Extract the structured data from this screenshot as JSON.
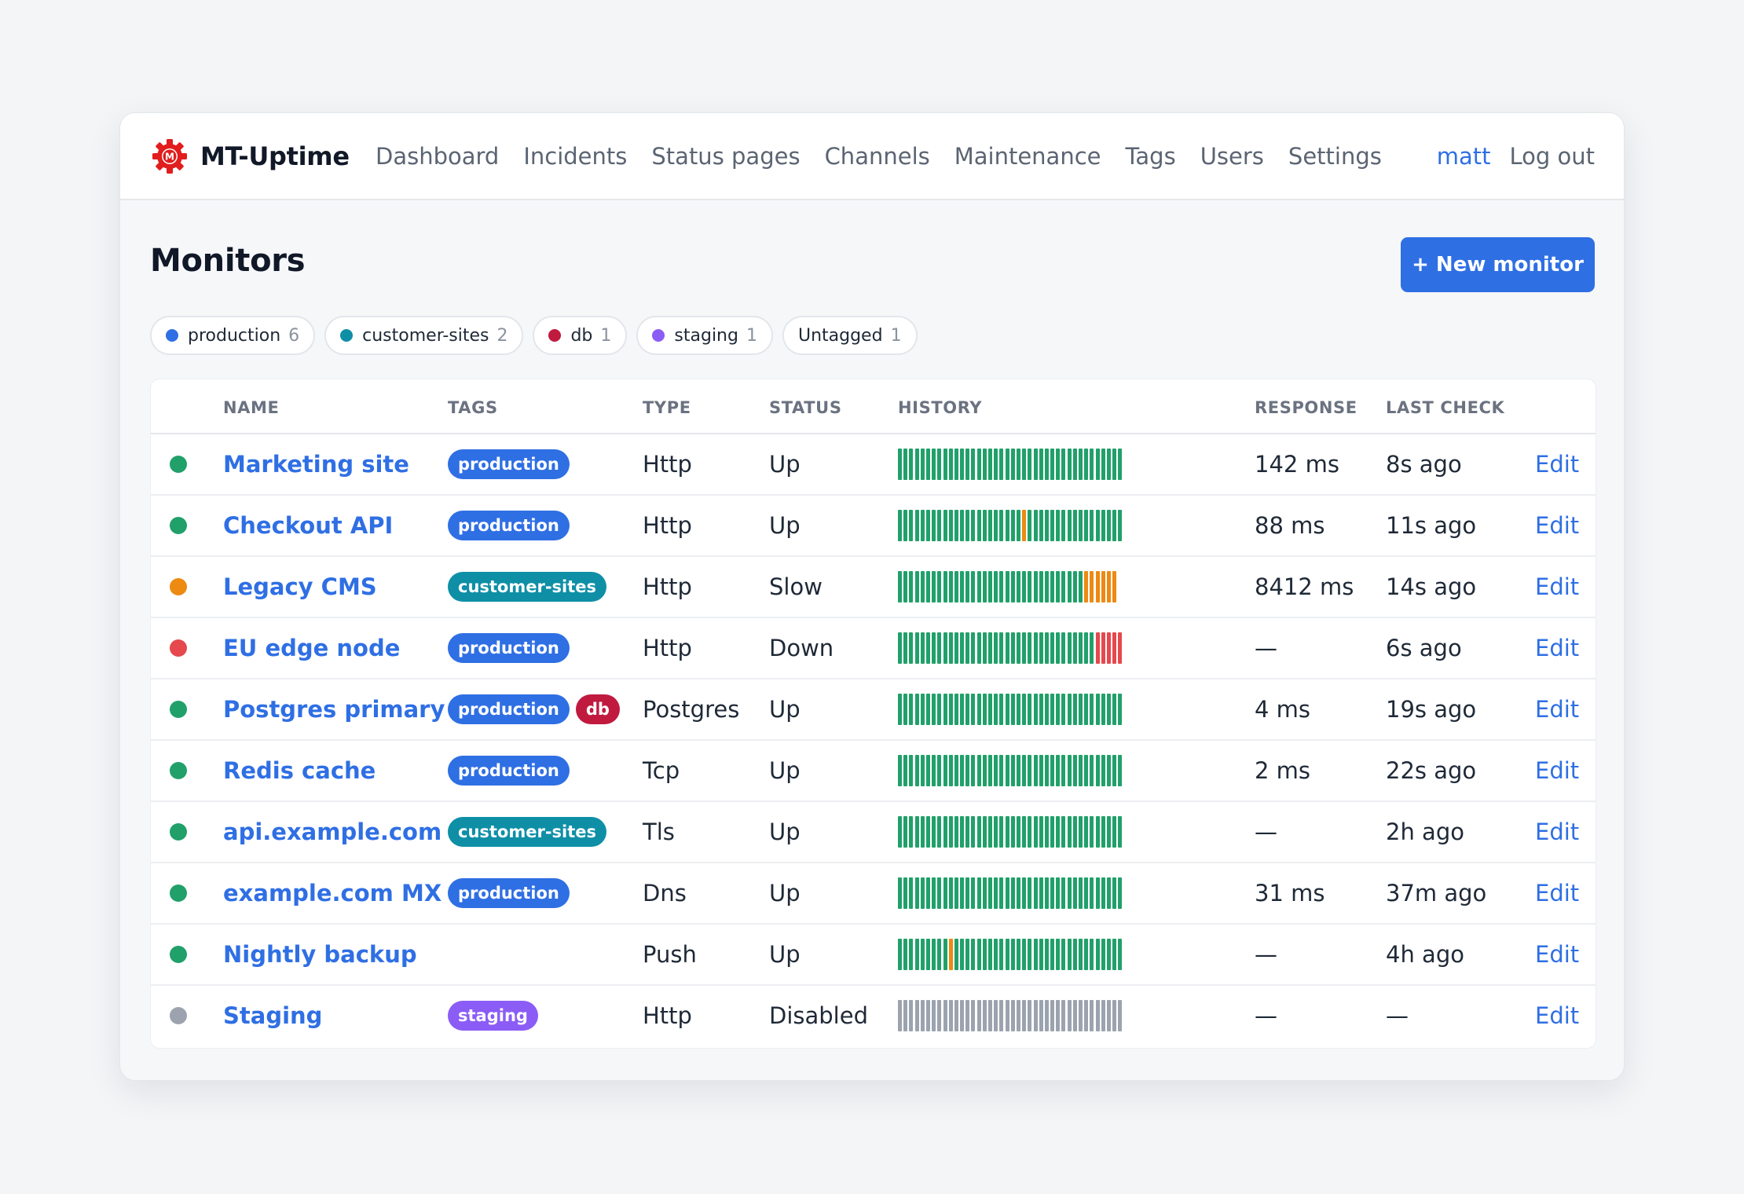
{
  "app": {
    "name": "MT-Uptime",
    "logo_letter": "M",
    "logo_color": "#e11d1d"
  },
  "nav": {
    "links": [
      "Dashboard",
      "Incidents",
      "Status pages",
      "Channels",
      "Maintenance",
      "Tags",
      "Users",
      "Settings"
    ],
    "user": "matt",
    "logout": "Log out"
  },
  "page": {
    "title": "Monitors",
    "new_button": "+ New monitor"
  },
  "colors": {
    "accent": "#2f6fe4",
    "up": "#21a06a",
    "slow": "#ec8a12",
    "down": "#e5484d",
    "disabled": "#9ca3af"
  },
  "filters": [
    {
      "label": "production",
      "count": "6",
      "color": "#2f6fe4"
    },
    {
      "label": "customer-sites",
      "count": "2",
      "color": "#0e8fa6"
    },
    {
      "label": "db",
      "count": "1",
      "color": "#c01a3f"
    },
    {
      "label": "staging",
      "count": "1",
      "color": "#8b5cf6"
    },
    {
      "label": "Untagged",
      "count": "1",
      "color": null
    }
  ],
  "tag_colors": {
    "production": "#2f6fe4",
    "customer-sites": "#0e8fa6",
    "db": "#c01a3f",
    "staging": "#8b5cf6"
  },
  "table": {
    "columns": {
      "name": "NAME",
      "tags": "TAGS",
      "type": "TYPE",
      "status": "STATUS",
      "history": "HISTORY",
      "response": "RESPONSE",
      "last_check": "LAST CHECK"
    },
    "edit_label": "Edit",
    "rows": [
      {
        "state": "up",
        "name": "Marketing site",
        "tags": [
          "production"
        ],
        "type": "Http",
        "status": "Up",
        "response": "142 ms",
        "last_check": "8s ago",
        "history": "uuuuuuuuuuuuuuuuuuuuuuuuuuuuuuuuuuuuuuuu"
      },
      {
        "state": "up",
        "name": "Checkout API",
        "tags": [
          "production"
        ],
        "type": "Http",
        "status": "Up",
        "response": "88 ms",
        "last_check": "11s ago",
        "history": "uuuuuuuuuuuuuuuuuuuuuusuuuuuuuuuuuuuuuuu"
      },
      {
        "state": "slow",
        "name": "Legacy CMS",
        "tags": [
          "customer-sites"
        ],
        "type": "Http",
        "status": "Slow",
        "response": "8412 ms",
        "last_check": "14s ago",
        "history": "uuuuuuuuuuuuuuuuuuuuuuuuuuuuuuuuussssss"
      },
      {
        "state": "down",
        "name": "EU edge node",
        "tags": [
          "production"
        ],
        "type": "Http",
        "status": "Down",
        "response": "—",
        "last_check": "6s ago",
        "history": "uuuuuuuuuuuuuuuuuuuuuuuuuuuuuuuuuuuddddd"
      },
      {
        "state": "up",
        "name": "Postgres primary",
        "tags": [
          "production",
          "db"
        ],
        "type": "Postgres",
        "status": "Up",
        "response": "4 ms",
        "last_check": "19s ago",
        "history": "uuuuuuuuuuuuuuuuuuuuuuuuuuuuuuuuuuuuuuuu"
      },
      {
        "state": "up",
        "name": "Redis cache",
        "tags": [
          "production"
        ],
        "type": "Tcp",
        "status": "Up",
        "response": "2 ms",
        "last_check": "22s ago",
        "history": "uuuuuuuuuuuuuuuuuuuuuuuuuuuuuuuuuuuuuuuu"
      },
      {
        "state": "up",
        "name": "api.example.com",
        "tags": [
          "customer-sites"
        ],
        "type": "Tls",
        "status": "Up",
        "response": "—",
        "last_check": "2h ago",
        "history": "uuuuuuuuuuuuuuuuuuuuuuuuuuuuuuuuuuuuuuuu"
      },
      {
        "state": "up",
        "name": "example.com MX",
        "tags": [
          "production"
        ],
        "type": "Dns",
        "status": "Up",
        "response": "31 ms",
        "last_check": "37m ago",
        "history": "uuuuuuuuuuuuuuuuuuuuuuuuuuuuuuuuuuuuuuuu"
      },
      {
        "state": "up",
        "name": "Nightly backup",
        "tags": [],
        "type": "Push",
        "status": "Up",
        "response": "—",
        "last_check": "4h ago",
        "history": "uuuuuuuuusuuuuuuuuuuuuuuuuuuuuuuuuuuuuuu"
      },
      {
        "state": "disabled",
        "name": "Staging",
        "tags": [
          "staging"
        ],
        "type": "Http",
        "status": "Disabled",
        "response": "—",
        "last_check": "—",
        "history": "xxxxxxxxxxxxxxxxxxxxxxxxxxxxxxxxxxxxxxxx"
      }
    ]
  }
}
